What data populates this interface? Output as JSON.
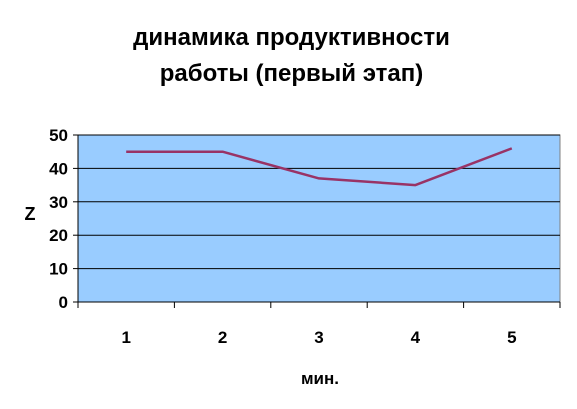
{
  "chart_data": {
    "type": "line",
    "title": [
      "динамика продуктивности",
      "работы (первый этап)"
    ],
    "xlabel": "мин.",
    "ylabel": "Z",
    "categories": [
      "1",
      "2",
      "3",
      "4",
      "5"
    ],
    "series": [
      {
        "values": [
          45,
          45,
          37,
          35,
          46
        ],
        "color": "#993366"
      }
    ],
    "ylim": [
      0,
      50
    ],
    "yticks": [
      0,
      10,
      20,
      30,
      40,
      50
    ],
    "grid": true,
    "legend": "none",
    "colors": {
      "plot_area": "#99ccff",
      "gridline": "#000000",
      "axis_text": "#000000"
    }
  }
}
